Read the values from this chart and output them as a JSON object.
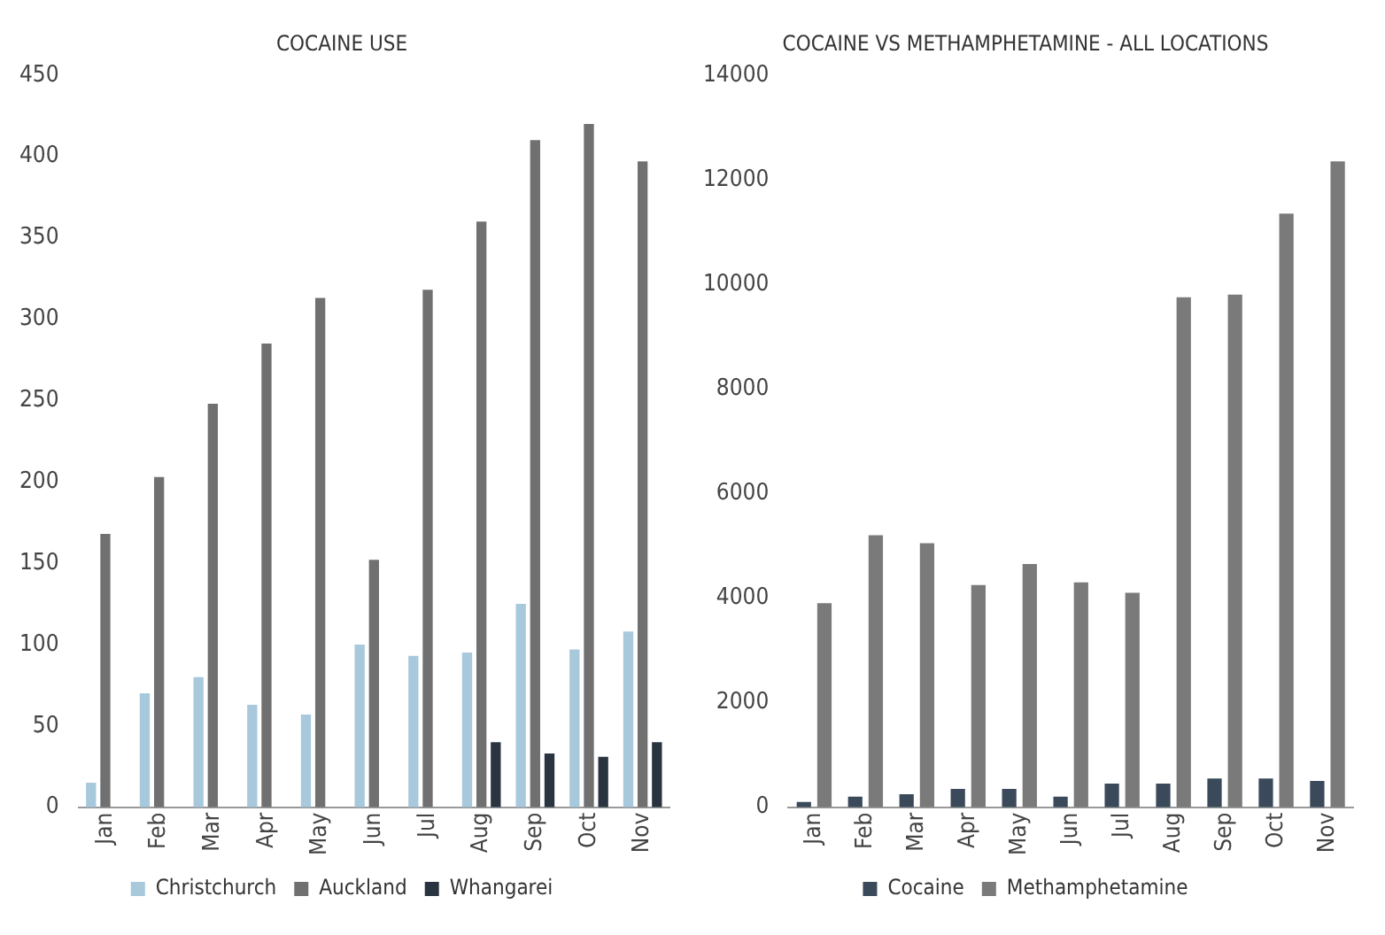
{
  "chart_data": [
    {
      "type": "bar",
      "title": "COCAINE USE",
      "categories": [
        "Jan",
        "Feb",
        "Mar",
        "Apr",
        "May",
        "Jun",
        "Jul",
        "Aug",
        "Sep",
        "Oct",
        "Nov"
      ],
      "series": [
        {
          "name": "Christchurch",
          "color": "#a8c8dc",
          "values": [
            15,
            70,
            80,
            63,
            57,
            100,
            93,
            95,
            125,
            97,
            108
          ]
        },
        {
          "name": "Auckland",
          "color": "#707070",
          "values": [
            168,
            203,
            248,
            285,
            313,
            152,
            318,
            360,
            410,
            420,
            397
          ]
        },
        {
          "name": "Whangarei",
          "color": "#2a3440",
          "values": [
            null,
            null,
            null,
            null,
            null,
            null,
            null,
            40,
            33,
            31,
            40
          ]
        }
      ],
      "ylim": [
        0,
        450
      ],
      "yticks": [
        0,
        50,
        100,
        150,
        200,
        250,
        300,
        350,
        400,
        450
      ],
      "grid": false,
      "legend": "bottom"
    },
    {
      "type": "bar",
      "title": "COCAINE VS METHAMPHETAMINE - ALL LOCATIONS",
      "categories": [
        "Jan",
        "Feb",
        "Mar",
        "Apr",
        "May",
        "Jun",
        "Jul",
        "Aug",
        "Sep",
        "Oct",
        "Nov"
      ],
      "series": [
        {
          "name": "Cocaine",
          "color": "#3a4a5a",
          "values": [
            100,
            200,
            250,
            350,
            350,
            200,
            450,
            450,
            550,
            550,
            500
          ]
        },
        {
          "name": "Methamphetamine",
          "color": "#7a7a7a",
          "values": [
            3900,
            5200,
            5050,
            4250,
            4650,
            4300,
            4100,
            9750,
            9800,
            11350,
            12350
          ]
        }
      ],
      "ylim": [
        0,
        14000
      ],
      "yticks": [
        0,
        2000,
        4000,
        6000,
        8000,
        10000,
        12000,
        14000
      ],
      "grid": false,
      "legend": "bottom"
    }
  ]
}
